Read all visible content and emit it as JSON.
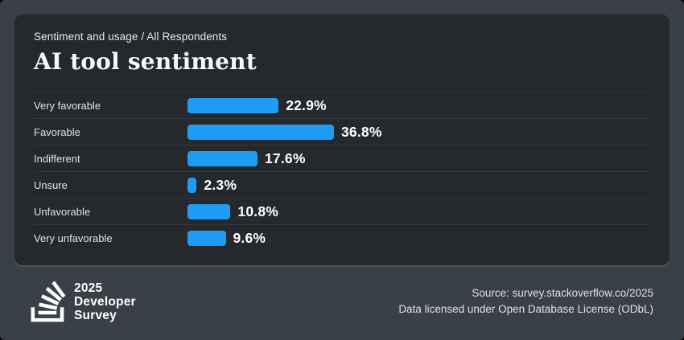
{
  "header": {
    "breadcrumb": "Sentiment and usage / All Respondents",
    "title": "AI tool sentiment"
  },
  "chart_data": {
    "type": "bar",
    "orientation": "horizontal",
    "title": "AI tool sentiment",
    "subtitle": "Sentiment and usage / All Respondents",
    "categories": [
      "Very favorable",
      "Favorable",
      "Indifferent",
      "Unsure",
      "Unfavorable",
      "Very unfavorable"
    ],
    "values": [
      22.9,
      36.8,
      17.6,
      2.3,
      10.8,
      9.6
    ],
    "display_values": [
      "22.9%",
      "36.8%",
      "17.6%",
      "2.3%",
      "10.8%",
      "9.6%"
    ],
    "unit": "%",
    "xlim": [
      0,
      40
    ],
    "grid": false,
    "legend": false,
    "bar_color": "#1f9cf4"
  },
  "footer": {
    "logo_line1": "2025",
    "logo_line2": "Developer",
    "logo_line3": "Survey",
    "source_line1": "Source: survey.stackoverflow.co/2025",
    "source_line2": "Data licensed under Open Database License (ODbL)"
  },
  "colors": {
    "page_bg": "#3a4047",
    "card_bg": "#25282c",
    "bar": "#1f9cf4",
    "separator": "#34393e",
    "value_text": "#ffffff"
  }
}
